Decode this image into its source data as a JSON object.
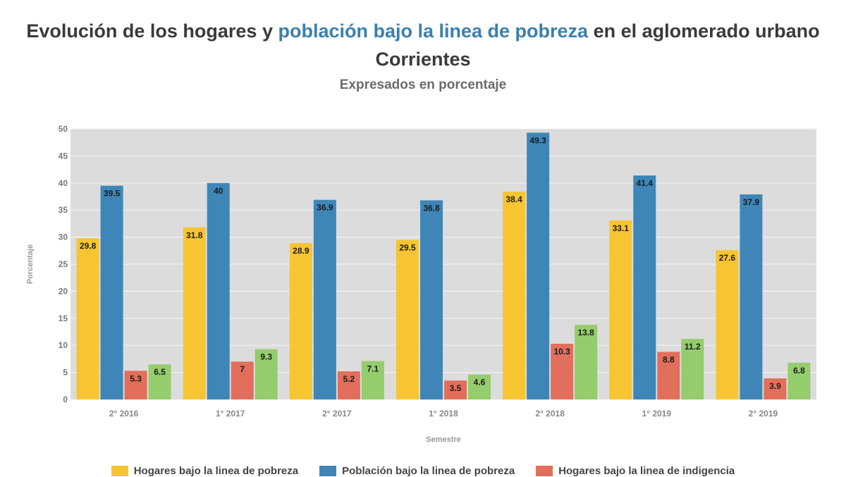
{
  "chart_data": {
    "type": "bar",
    "title_parts": {
      "before": "Evolución de los hogares y ",
      "highlight": "población bajo la linea de pobreza",
      "after": " en el aglomerado urbano Corrientes"
    },
    "subtitle": "Expresados en porcentaje",
    "xlabel": "Semestre",
    "ylabel": "Porcentaje",
    "ylim": [
      0,
      50
    ],
    "yticks": [
      0,
      5,
      10,
      15,
      20,
      25,
      30,
      35,
      40,
      45,
      50
    ],
    "grid": true,
    "legend_position": "bottom",
    "categories": [
      "2° 2016",
      "1° 2017",
      "2° 2017",
      "1° 2018",
      "2° 2018",
      "1° 2019",
      "2° 2019"
    ],
    "series": [
      {
        "name": "Hogares bajo la linea de pobreza",
        "color": "#f7c531",
        "values": [
          29.8,
          31.8,
          28.9,
          29.5,
          38.4,
          33.1,
          27.6
        ]
      },
      {
        "name": "Población bajo la linea de pobreza",
        "color": "#3e86b8",
        "values": [
          39.5,
          40,
          36.9,
          36.8,
          49.3,
          41.4,
          37.9
        ]
      },
      {
        "name": "Hogares bajo la linea de indigencia",
        "color": "#e26f5c",
        "values": [
          5.3,
          7,
          5.2,
          3.5,
          10.3,
          8.8,
          3.9
        ]
      },
      {
        "name": "",
        "color": "#95cc6c",
        "values": [
          6.5,
          9.3,
          7.1,
          4.6,
          13.8,
          11.2,
          6.8
        ]
      }
    ],
    "colors": {
      "plot_background": "#dcdcdc",
      "gridline": "#f2f2f2",
      "title_highlight": "#3b7fb0"
    }
  }
}
